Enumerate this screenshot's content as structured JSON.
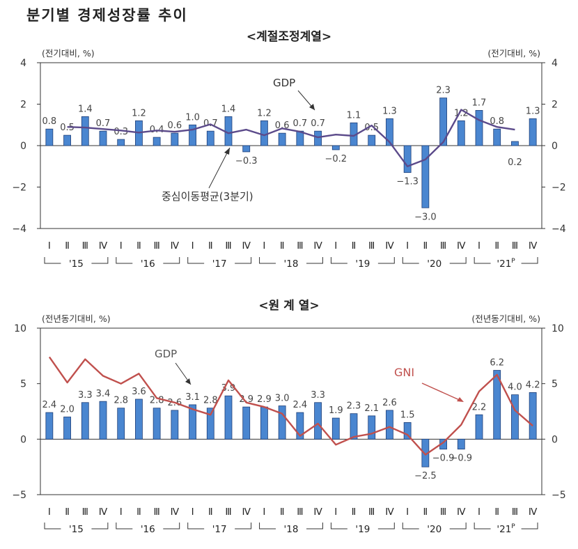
{
  "title": "분기별 경제성장률 추이",
  "quarter_labels": [
    "Ⅰ",
    "Ⅱ",
    "Ⅲ",
    "Ⅳ",
    "Ⅰ",
    "Ⅱ",
    "Ⅲ",
    "Ⅳ",
    "Ⅰ",
    "Ⅱ",
    "Ⅲ",
    "Ⅳ",
    "Ⅰ",
    "Ⅱ",
    "Ⅲ",
    "Ⅳ",
    "Ⅰ",
    "Ⅱ",
    "Ⅲ",
    "Ⅳ",
    "Ⅰ",
    "Ⅱ",
    "Ⅲ",
    "Ⅳ",
    "Ⅰ",
    "Ⅱ",
    "Ⅲ",
    "Ⅳ"
  ],
  "year_labels": [
    "'15",
    "'16",
    "'17",
    "'18",
    "'19",
    "'20",
    "'21"
  ],
  "year_suffix_last": "P",
  "colors": {
    "bar_fill": "#4a86d0",
    "bar_stroke": "#1f3f78",
    "line_sa": "#5b4a8a",
    "line_gni": "#c0504d",
    "axis": "#333333",
    "label": "#333333"
  },
  "chart_data": [
    {
      "type": "bar",
      "title": "<계절조정계열>",
      "left_unit": "(전기대비, %)",
      "right_unit": "(전기대비, %)",
      "ylim": [
        -4,
        4
      ],
      "yticks": [
        "4",
        "2",
        "0",
        "−2",
        "−4"
      ],
      "ytick_values": [
        4,
        2,
        0,
        -2,
        -4
      ],
      "series": [
        {
          "name": "GDP",
          "type": "bar",
          "values": [
            0.8,
            0.5,
            1.4,
            0.7,
            0.3,
            1.2,
            0.4,
            0.6,
            1.0,
            0.7,
            1.4,
            -0.3,
            1.2,
            0.6,
            0.7,
            0.7,
            -0.2,
            1.1,
            0.5,
            1.3,
            -1.3,
            -3.0,
            2.3,
            1.2,
            1.7,
            0.8,
            0.2,
            1.3
          ]
        },
        {
          "name": "중심이동평균(3분기)",
          "type": "line",
          "values": [
            null,
            0.9,
            0.87,
            0.8,
            0.73,
            0.63,
            0.73,
            0.67,
            0.77,
            1.03,
            0.6,
            0.77,
            0.5,
            0.83,
            0.67,
            0.4,
            0.53,
            0.47,
            0.97,
            0.17,
            -1.0,
            -0.67,
            0.17,
            1.73,
            1.23,
            0.9,
            0.77,
            null
          ]
        }
      ],
      "data_labels": [
        "0.8",
        "0.5",
        "1.4",
        "0.7",
        "0.3",
        "1.2",
        "0.4",
        "0.6",
        "1.0",
        "0.7",
        "1.4",
        "−0.3",
        "1.2",
        "0.6",
        "0.7",
        "0.7",
        "−0.2",
        "1.1",
        "0.5",
        "1.3",
        "−1.3",
        "−3.0",
        "2.3",
        "1.2",
        "1.7",
        "0.8",
        "0.2",
        "1.3"
      ],
      "annotations": {
        "gdp": "GDP",
        "moving_avg": "중심이동평균(3분기)"
      }
    },
    {
      "type": "bar",
      "title": "<원 계 열>",
      "left_unit": "(전년동기대비, %)",
      "right_unit": "(전년동기대비, %)",
      "ylim": [
        -5,
        10
      ],
      "yticks": [
        "10",
        "5",
        "0",
        "−5"
      ],
      "ytick_values": [
        10,
        5,
        0,
        -5
      ],
      "series": [
        {
          "name": "GDP",
          "type": "bar",
          "values": [
            2.4,
            2.0,
            3.3,
            3.4,
            2.8,
            3.6,
            2.8,
            2.6,
            3.1,
            2.8,
            3.9,
            2.9,
            2.9,
            3.0,
            2.4,
            3.3,
            1.9,
            2.3,
            2.1,
            2.6,
            1.5,
            -2.5,
            -0.9,
            -0.9,
            2.2,
            6.2,
            4.0,
            4.2
          ]
        },
        {
          "name": "GNI",
          "type": "line",
          "values": [
            7.4,
            5.1,
            7.2,
            5.7,
            5.0,
            5.9,
            3.7,
            3.3,
            2.7,
            2.2,
            5.3,
            3.3,
            2.9,
            2.3,
            0.3,
            1.4,
            -0.5,
            0.2,
            0.5,
            1.1,
            0.4,
            -1.4,
            -0.3,
            1.3,
            4.3,
            5.8,
            2.6,
            1.2
          ]
        }
      ],
      "data_labels": [
        "2.4",
        "2.0",
        "3.3",
        "3.4",
        "2.8",
        "3.6",
        "2.8",
        "2.6",
        "3.1",
        "2.8",
        "3.9",
        "2.9",
        "2.9",
        "3.0",
        "2.4",
        "3.3",
        "1.9",
        "2.3",
        "2.1",
        "2.6",
        "1.5",
        "−2.5",
        "−0.9",
        "−0.9",
        "2.2",
        "6.2",
        "4.0",
        "4.2"
      ],
      "annotations": {
        "gdp": "GDP",
        "gni": "GNI"
      }
    }
  ]
}
